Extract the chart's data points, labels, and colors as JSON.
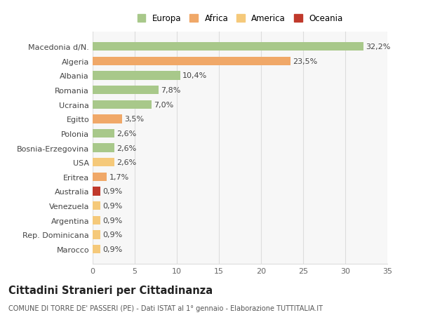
{
  "categories": [
    "Marocco",
    "Rep. Dominicana",
    "Argentina",
    "Venezuela",
    "Australia",
    "Eritrea",
    "USA",
    "Bosnia-Erzegovina",
    "Polonia",
    "Egitto",
    "Ucraina",
    "Romania",
    "Albania",
    "Algeria",
    "Macedonia d/N."
  ],
  "values": [
    0.9,
    0.9,
    0.9,
    0.9,
    0.9,
    1.7,
    2.6,
    2.6,
    2.6,
    3.5,
    7.0,
    7.8,
    10.4,
    23.5,
    32.2
  ],
  "labels": [
    "0,9%",
    "0,9%",
    "0,9%",
    "0,9%",
    "0,9%",
    "1,7%",
    "2,6%",
    "2,6%",
    "2,6%",
    "3,5%",
    "7,0%",
    "7,8%",
    "10,4%",
    "23,5%",
    "32,2%"
  ],
  "colors": [
    "#F5C97A",
    "#F5C97A",
    "#F5C97A",
    "#F5C97A",
    "#C0392B",
    "#F0A868",
    "#F5C97A",
    "#A8C88A",
    "#A8C88A",
    "#F0A868",
    "#A8C88A",
    "#A8C88A",
    "#A8C88A",
    "#F0A868",
    "#A8C88A"
  ],
  "legend": [
    {
      "label": "Europa",
      "color": "#A8C88A"
    },
    {
      "label": "Africa",
      "color": "#F0A868"
    },
    {
      "label": "America",
      "color": "#F5C97A"
    },
    {
      "label": "Oceania",
      "color": "#C0392B"
    }
  ],
  "xlim": [
    0,
    35
  ],
  "xticks": [
    0,
    5,
    10,
    15,
    20,
    25,
    30,
    35
  ],
  "title": "Cittadini Stranieri per Cittadinanza",
  "subtitle": "COMUNE DI TORRE DE' PASSERI (PE) - Dati ISTAT al 1° gennaio - Elaborazione TUTTITALIA.IT",
  "background_color": "#FFFFFF",
  "plot_bg_color": "#F7F7F7",
  "grid_color": "#DDDDDD",
  "bar_height": 0.6,
  "label_fontsize": 8,
  "tick_fontsize": 8,
  "title_fontsize": 10.5,
  "subtitle_fontsize": 7,
  "legend_fontsize": 8.5
}
